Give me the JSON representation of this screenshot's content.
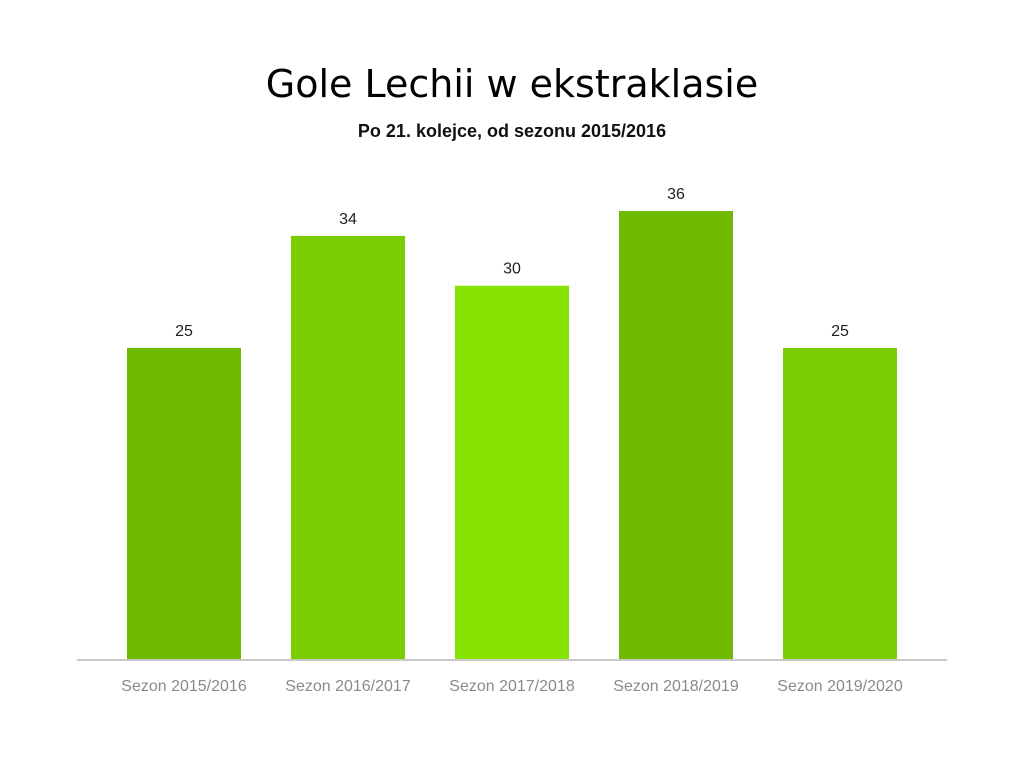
{
  "chart_data": {
    "type": "bar",
    "title": "Gole Lechii w ekstraklasie",
    "subtitle": "Po 21. kolejce, od sezonu 2015/2016",
    "categories": [
      "Sezon 2015/2016",
      "Sezon 2016/2017",
      "Sezon 2017/2018",
      "Sezon 2018/2019",
      "Sezon 2019/2020"
    ],
    "values": [
      25,
      34,
      30,
      36,
      25
    ],
    "colors": [
      "#6fb900",
      "#7acd00",
      "#86e400",
      "#6fb900",
      "#7acd00"
    ],
    "ylim": [
      0,
      36
    ],
    "grid": false,
    "data_labels": true,
    "axis_color": "#c8c8c8"
  }
}
